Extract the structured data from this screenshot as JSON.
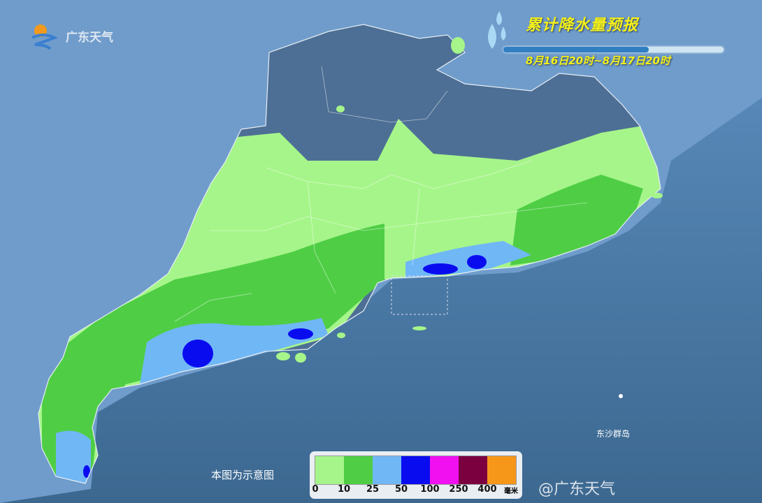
{
  "logo": {
    "text": "广东天气"
  },
  "header": {
    "title": "累计降水量预报",
    "period": "8月16日20时~8月17日20时",
    "title_color": "#f4f01a"
  },
  "map": {
    "note": "本图为示意图",
    "island_label": "东沙群岛",
    "watermark": "@广东天气"
  },
  "legend": {
    "unit": "毫米",
    "bins": [
      {
        "label": "0",
        "color": "#a6f58a"
      },
      {
        "label": "10",
        "color": "#4fce45"
      },
      {
        "label": "25",
        "color": "#70b7f5"
      },
      {
        "label": "50",
        "color": "#0a0cf0"
      },
      {
        "label": "100",
        "color": "#f010f0"
      },
      {
        "label": "250",
        "color": "#7b0040"
      },
      {
        "label": "400",
        "color": "#f6971a"
      }
    ]
  }
}
